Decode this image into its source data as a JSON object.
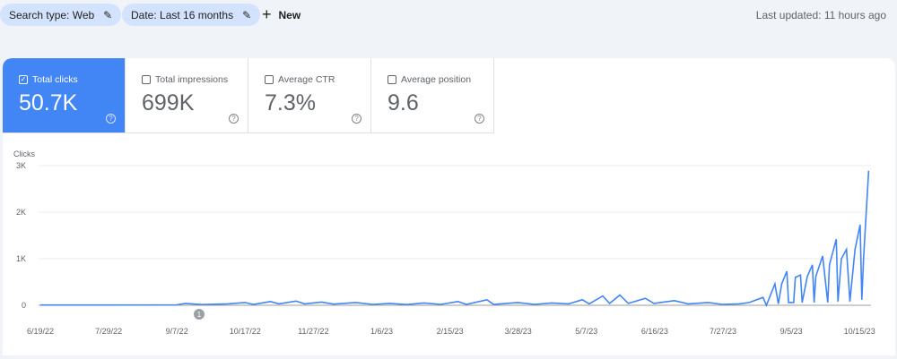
{
  "filters": [
    {
      "label": "Search type: Web",
      "icon": "pencil-icon"
    },
    {
      "label": "Date: Last 16 months",
      "icon": "pencil-icon"
    }
  ],
  "new_label": "New",
  "last_updated": "Last updated: 11 hours ago",
  "metrics": [
    {
      "label": "Total clicks",
      "value": "50.7K",
      "checked": true
    },
    {
      "label": "Total impressions",
      "value": "699K",
      "checked": false
    },
    {
      "label": "Average CTR",
      "value": "7.3%",
      "checked": false
    },
    {
      "label": "Average position",
      "value": "9.6",
      "checked": false
    }
  ],
  "chart_data": {
    "type": "line",
    "ylabel": "Clicks",
    "ylim": [
      0,
      3000
    ],
    "yticks": [
      "0",
      "1K",
      "2K",
      "3K"
    ],
    "xticks": [
      "6/19/22",
      "7/29/22",
      "9/7/22",
      "10/17/22",
      "11/27/22",
      "1/6/23",
      "2/15/23",
      "3/28/23",
      "5/7/23",
      "6/16/23",
      "7/27/23",
      "9/5/23",
      "10/15/23"
    ],
    "x_unit": "days since 6/19/22",
    "annotation": "1",
    "color": "#4285f4",
    "points": [
      [
        0,
        5
      ],
      [
        40,
        5
      ],
      [
        80,
        10
      ],
      [
        85,
        40
      ],
      [
        95,
        15
      ],
      [
        110,
        30
      ],
      [
        120,
        60
      ],
      [
        125,
        20
      ],
      [
        135,
        80
      ],
      [
        140,
        30
      ],
      [
        150,
        90
      ],
      [
        155,
        30
      ],
      [
        165,
        70
      ],
      [
        172,
        25
      ],
      [
        185,
        60
      ],
      [
        195,
        20
      ],
      [
        205,
        40
      ],
      [
        215,
        15
      ],
      [
        225,
        50
      ],
      [
        235,
        20
      ],
      [
        245,
        80
      ],
      [
        250,
        20
      ],
      [
        262,
        120
      ],
      [
        266,
        20
      ],
      [
        280,
        60
      ],
      [
        290,
        20
      ],
      [
        300,
        50
      ],
      [
        310,
        30
      ],
      [
        318,
        120
      ],
      [
        322,
        30
      ],
      [
        330,
        200
      ],
      [
        334,
        40
      ],
      [
        340,
        220
      ],
      [
        345,
        40
      ],
      [
        355,
        150
      ],
      [
        360,
        40
      ],
      [
        372,
        100
      ],
      [
        380,
        30
      ],
      [
        392,
        60
      ],
      [
        400,
        20
      ],
      [
        410,
        30
      ],
      [
        416,
        60
      ],
      [
        424,
        170
      ],
      [
        426,
        0
      ],
      [
        431,
        460
      ],
      [
        433,
        30
      ],
      [
        435,
        460
      ],
      [
        438,
        730
      ],
      [
        439,
        60
      ],
      [
        442,
        60
      ],
      [
        443,
        600
      ],
      [
        446,
        650
      ],
      [
        447,
        60
      ],
      [
        450,
        620
      ],
      [
        453,
        870
      ],
      [
        454,
        60
      ],
      [
        455,
        620
      ],
      [
        459,
        1060
      ],
      [
        462,
        60
      ],
      [
        463,
        870
      ],
      [
        467,
        1420
      ],
      [
        468,
        80
      ],
      [
        470,
        1000
      ],
      [
        473,
        1200
      ],
      [
        475,
        80
      ],
      [
        478,
        1200
      ],
      [
        481,
        1730
      ],
      [
        482,
        120
      ],
      [
        483,
        1000
      ],
      [
        486,
        2890
      ]
    ]
  }
}
